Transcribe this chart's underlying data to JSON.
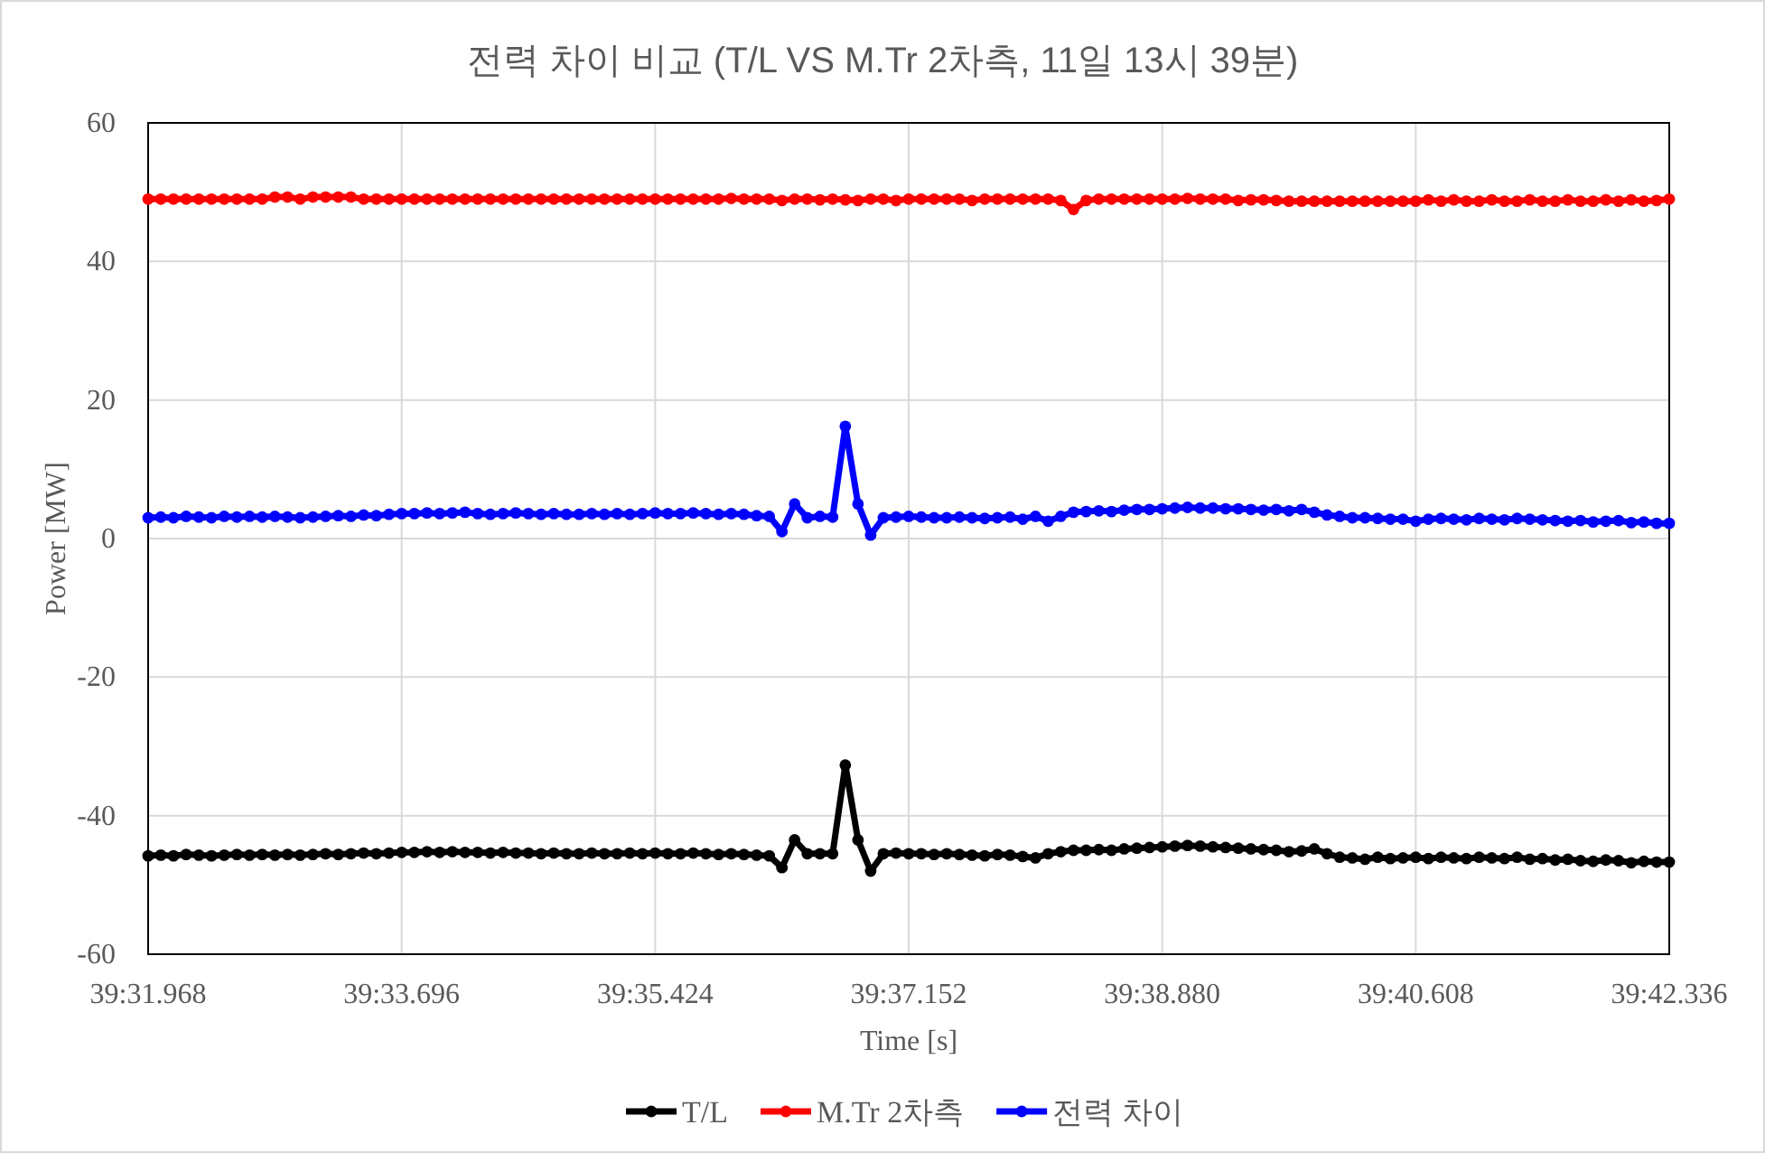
{
  "chart_data": {
    "type": "line",
    "title": "전력 차이 비교 (T/L VS M.Tr 2차측, 11일 13시 39분)",
    "xlabel": "Time [s]",
    "ylabel": "Power [MW]",
    "categories": [
      "39:31.968",
      null,
      null,
      null,
      null,
      null,
      null,
      null,
      null,
      null,
      null,
      null,
      null,
      null,
      null,
      null,
      null,
      null,
      null,
      null,
      "39:33.696",
      null,
      null,
      null,
      null,
      null,
      null,
      null,
      null,
      null,
      null,
      null,
      null,
      null,
      null,
      null,
      null,
      null,
      null,
      null,
      "39:35.424",
      null,
      null,
      null,
      null,
      null,
      null,
      null,
      null,
      null,
      null,
      null,
      null,
      null,
      null,
      null,
      null,
      null,
      null,
      null,
      "39:37.152",
      null,
      null,
      null,
      null,
      null,
      null,
      null,
      null,
      null,
      null,
      null,
      null,
      null,
      null,
      null,
      null,
      null,
      null,
      null,
      "39:38.880",
      null,
      null,
      null,
      null,
      null,
      null,
      null,
      null,
      null,
      null,
      null,
      null,
      null,
      null,
      null,
      null,
      null,
      null,
      null,
      "39:40.608",
      null,
      null,
      null,
      null,
      null,
      null,
      null,
      null,
      null,
      null,
      null,
      null,
      null,
      null,
      null,
      null,
      null,
      null,
      null,
      "39:42.336"
    ],
    "series": [
      {
        "name": "T/L",
        "color": "#000000",
        "values": [
          -45.8,
          -45.7,
          -45.8,
          -45.6,
          -45.7,
          -45.8,
          -45.7,
          -45.6,
          -45.7,
          -45.6,
          -45.7,
          -45.6,
          -45.7,
          -45.6,
          -45.5,
          -45.6,
          -45.5,
          -45.4,
          -45.5,
          -45.4,
          -45.3,
          -45.3,
          -45.2,
          -45.3,
          -45.2,
          -45.3,
          -45.3,
          -45.4,
          -45.3,
          -45.4,
          -45.4,
          -45.5,
          -45.4,
          -45.5,
          -45.5,
          -45.4,
          -45.5,
          -45.5,
          -45.4,
          -45.5,
          -45.4,
          -45.5,
          -45.5,
          -45.4,
          -45.5,
          -45.6,
          -45.5,
          -45.6,
          -45.7,
          -45.8,
          -47.5,
          -43.5,
          -45.5,
          -45.5,
          -45.5,
          -32.7,
          -43.5,
          -48,
          -45.5,
          -45.4,
          -45.5,
          -45.5,
          -45.6,
          -45.5,
          -45.6,
          -45.7,
          -45.8,
          -45.6,
          -45.7,
          -45.9,
          -46.1,
          -45.5,
          -45.2,
          -45,
          -45,
          -44.9,
          -45,
          -44.8,
          -44.7,
          -44.6,
          -44.5,
          -44.4,
          -44.3,
          -44.4,
          -44.5,
          -44.6,
          -44.7,
          -44.8,
          -44.9,
          -45,
          -45.2,
          -45.1,
          -44.8,
          -45.5,
          -46,
          -46.1,
          -46.3,
          -46,
          -46.2,
          -46.1,
          -46,
          -46.2,
          -46,
          -46.1,
          -46.2,
          -46,
          -46.1,
          -46.2,
          -46,
          -46.3,
          -46.2,
          -46.4,
          -46.3,
          -46.5,
          -46.6,
          -46.4,
          -46.5,
          -46.8,
          -46.6,
          -46.7,
          -46.7
        ]
      },
      {
        "name": "M.Tr 2차측",
        "color": "#ff0000",
        "values": [
          49,
          49,
          49,
          49,
          49,
          49,
          49,
          49,
          49,
          49,
          49.3,
          49.3,
          49,
          49.3,
          49.3,
          49.3,
          49.3,
          49,
          49,
          49,
          49,
          49,
          49,
          49,
          49,
          49,
          49,
          49,
          49,
          49,
          49,
          49,
          49,
          49,
          49,
          49,
          49,
          49,
          49,
          49,
          49,
          49,
          49,
          49,
          49,
          49,
          49.1,
          49,
          49,
          49,
          48.8,
          49,
          49,
          48.9,
          49,
          48.9,
          48.8,
          49,
          49,
          48.8,
          49,
          49,
          49,
          49,
          49,
          48.8,
          49,
          49,
          49,
          49,
          49,
          49,
          48.8,
          47.5,
          48.8,
          49,
          49,
          49,
          49,
          49,
          49,
          49,
          49.1,
          49,
          49,
          49,
          48.8,
          48.9,
          48.9,
          48.8,
          48.7,
          48.7,
          48.7,
          48.7,
          48.7,
          48.7,
          48.7,
          48.7,
          48.7,
          48.7,
          48.7,
          48.9,
          48.7,
          48.9,
          48.7,
          48.7,
          48.9,
          48.7,
          48.7,
          48.9,
          48.7,
          48.7,
          48.9,
          48.7,
          48.7,
          48.9,
          48.7,
          48.9,
          48.7,
          48.8,
          49
        ]
      },
      {
        "name": "전력 차이",
        "color": "#0000ff",
        "values": [
          3,
          3.1,
          3,
          3.2,
          3.1,
          3,
          3.2,
          3.1,
          3.2,
          3.1,
          3.2,
          3.1,
          3,
          3.1,
          3.2,
          3.3,
          3.2,
          3.4,
          3.3,
          3.5,
          3.6,
          3.6,
          3.7,
          3.6,
          3.7,
          3.8,
          3.6,
          3.5,
          3.6,
          3.7,
          3.6,
          3.5,
          3.6,
          3.5,
          3.5,
          3.6,
          3.5,
          3.6,
          3.5,
          3.6,
          3.7,
          3.6,
          3.6,
          3.7,
          3.6,
          3.5,
          3.6,
          3.5,
          3.3,
          3.2,
          1,
          5,
          3,
          3.2,
          3.1,
          16.2,
          5,
          0.5,
          3,
          3.1,
          3.2,
          3.1,
          3,
          3,
          3.1,
          3,
          2.9,
          3,
          3.1,
          2.8,
          3.2,
          2.5,
          3.2,
          3.8,
          3.9,
          4,
          3.9,
          4.1,
          4.2,
          4.2,
          4.3,
          4.4,
          4.5,
          4.4,
          4.4,
          4.3,
          4.3,
          4.2,
          4.1,
          4.2,
          4,
          4.2,
          3.8,
          3.4,
          3.2,
          3,
          3,
          2.9,
          2.8,
          2.8,
          2.5,
          2.8,
          2.9,
          2.8,
          2.7,
          2.9,
          2.8,
          2.7,
          2.9,
          2.8,
          2.7,
          2.6,
          2.5,
          2.6,
          2.4,
          2.5,
          2.6,
          2.3,
          2.4,
          2.2,
          2.2
        ]
      }
    ],
    "ylim": [
      -60,
      60
    ],
    "yticks": [
      -60,
      -40,
      -20,
      0,
      20,
      40,
      60
    ],
    "grid": true,
    "legend": "bottom",
    "marker": "circle",
    "line_style": "solid"
  }
}
